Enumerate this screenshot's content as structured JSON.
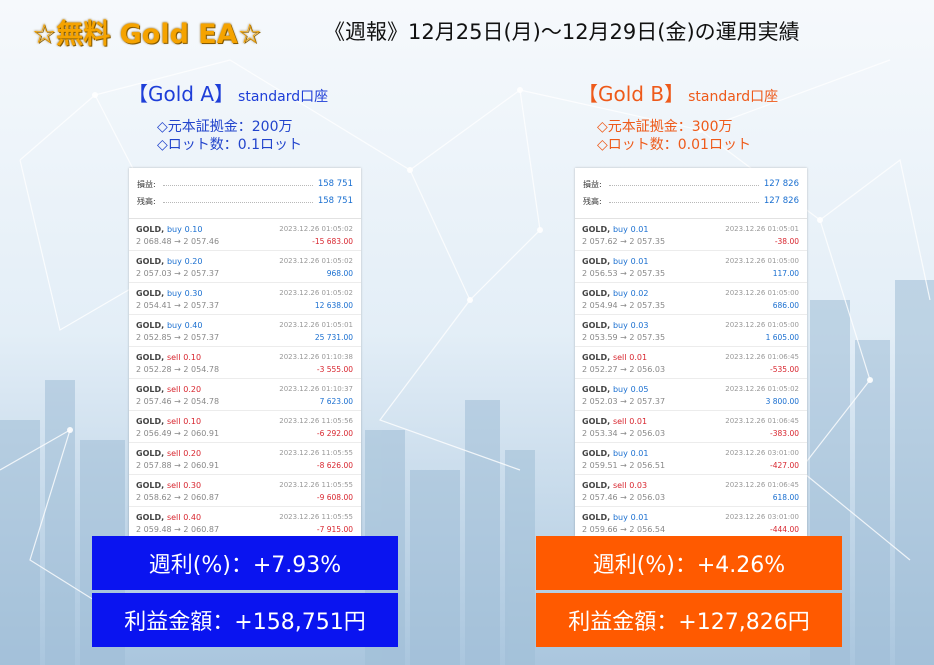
{
  "header": {
    "brand": "☆無料 Gold EA☆",
    "report": "《週報》12月25日(月)〜12月29日(金)の運用実績"
  },
  "colors": {
    "brand": "#f5a300",
    "account_a": "#1e3ed8",
    "account_b": "#ee5a1a",
    "result_a_bg": "#0a14f0",
    "result_b_bg": "#ff5a00",
    "buy": "#1a6fd0",
    "sell": "#d8262f"
  },
  "accounts": [
    {
      "title": "【Gold A】",
      "type": "standard口座",
      "capital": "◇元本証拠金：200万",
      "lots": "◇ロット数：0.1ロット",
      "summary": {
        "profit_label": "損益:",
        "profit_value": "158 751",
        "balance_label": "残高:",
        "balance_value": "158 751"
      },
      "trades": [
        {
          "symbol": "GOLD,",
          "side": "buy",
          "lot": "0.10",
          "prices": "2 068.48 → 2 057.46",
          "time": "2023.12.26 01:05:02",
          "pl": "-15 683.00"
        },
        {
          "symbol": "GOLD,",
          "side": "buy",
          "lot": "0.20",
          "prices": "2 057.03 → 2 057.37",
          "time": "2023.12.26 01:05:02",
          "pl": "968.00"
        },
        {
          "symbol": "GOLD,",
          "side": "buy",
          "lot": "0.30",
          "prices": "2 054.41 → 2 057.37",
          "time": "2023.12.26 01:05:02",
          "pl": "12 638.00"
        },
        {
          "symbol": "GOLD,",
          "side": "buy",
          "lot": "0.40",
          "prices": "2 052.85 → 2 057.37",
          "time": "2023.12.26 01:05:01",
          "pl": "25 731.00"
        },
        {
          "symbol": "GOLD,",
          "side": "sell",
          "lot": "0.10",
          "prices": "2 052.28 → 2 054.78",
          "time": "2023.12.26 01:10:38",
          "pl": "-3 555.00"
        },
        {
          "symbol": "GOLD,",
          "side": "sell",
          "lot": "0.20",
          "prices": "2 057.46 → 2 054.78",
          "time": "2023.12.26 01:10:37",
          "pl": "7 623.00"
        },
        {
          "symbol": "GOLD,",
          "side": "sell",
          "lot": "0.10",
          "prices": "2 056.49 → 2 060.91",
          "time": "2023.12.26 11:05:56",
          "pl": "-6 292.00"
        },
        {
          "symbol": "GOLD,",
          "side": "sell",
          "lot": "0.20",
          "prices": "2 057.88 → 2 060.91",
          "time": "2023.12.26 11:05:55",
          "pl": "-8 626.00"
        },
        {
          "symbol": "GOLD,",
          "side": "sell",
          "lot": "0.30",
          "prices": "2 058.62 → 2 060.87",
          "time": "2023.12.26 11:05:55",
          "pl": "-9 608.00"
        },
        {
          "symbol": "GOLD,",
          "side": "sell",
          "lot": "0.40",
          "prices": "2 059.48 → 2 060.87",
          "time": "2023.12.26 11:05:55",
          "pl": "-7 915.00"
        }
      ],
      "weekly": "週利(%)：+7.93%",
      "profit": "利益金額：+158,751円"
    },
    {
      "title": "【Gold B】",
      "type": "standard口座",
      "capital": "◇元本証拠金：300万",
      "lots": "◇ロット数：0.01ロット",
      "summary": {
        "profit_label": "損益:",
        "profit_value": "127 826",
        "balance_label": "残高:",
        "balance_value": "127 826"
      },
      "trades": [
        {
          "symbol": "GOLD,",
          "side": "buy",
          "lot": "0.01",
          "prices": "2 057.62 → 2 057.35",
          "time": "2023.12.26 01:05:01",
          "pl": "-38.00"
        },
        {
          "symbol": "GOLD,",
          "side": "buy",
          "lot": "0.01",
          "prices": "2 056.53 → 2 057.35",
          "time": "2023.12.26 01:05:00",
          "pl": "117.00"
        },
        {
          "symbol": "GOLD,",
          "side": "buy",
          "lot": "0.02",
          "prices": "2 054.94 → 2 057.35",
          "time": "2023.12.26 01:05:00",
          "pl": "686.00"
        },
        {
          "symbol": "GOLD,",
          "side": "buy",
          "lot": "0.03",
          "prices": "2 053.59 → 2 057.35",
          "time": "2023.12.26 01:05:00",
          "pl": "1 605.00"
        },
        {
          "symbol": "GOLD,",
          "side": "sell",
          "lot": "0.01",
          "prices": "2 052.27 → 2 056.03",
          "time": "2023.12.26 01:06:45",
          "pl": "-535.00"
        },
        {
          "symbol": "GOLD,",
          "side": "buy",
          "lot": "0.05",
          "prices": "2 052.03 → 2 057.37",
          "time": "2023.12.26 01:05:02",
          "pl": "3 800.00"
        },
        {
          "symbol": "GOLD,",
          "side": "sell",
          "lot": "0.01",
          "prices": "2 053.34 → 2 056.03",
          "time": "2023.12.26 01:06:45",
          "pl": "-383.00"
        },
        {
          "symbol": "GOLD,",
          "side": "buy",
          "lot": "0.01",
          "prices": "2 059.51 → 2 056.51",
          "time": "2023.12.26 03:01:00",
          "pl": "-427.00"
        },
        {
          "symbol": "GOLD,",
          "side": "sell",
          "lot": "0.03",
          "prices": "2 057.46 → 2 056.03",
          "time": "2023.12.26 01:06:45",
          "pl": "618.00"
        },
        {
          "symbol": "GOLD,",
          "side": "buy",
          "lot": "0.01",
          "prices": "2 059.66 → 2 056.54",
          "time": "2023.12.26 03:01:00",
          "pl": "-444.00"
        }
      ],
      "weekly": "週利(%)：+4.26%",
      "profit": "利益金額：+127,826円"
    }
  ]
}
